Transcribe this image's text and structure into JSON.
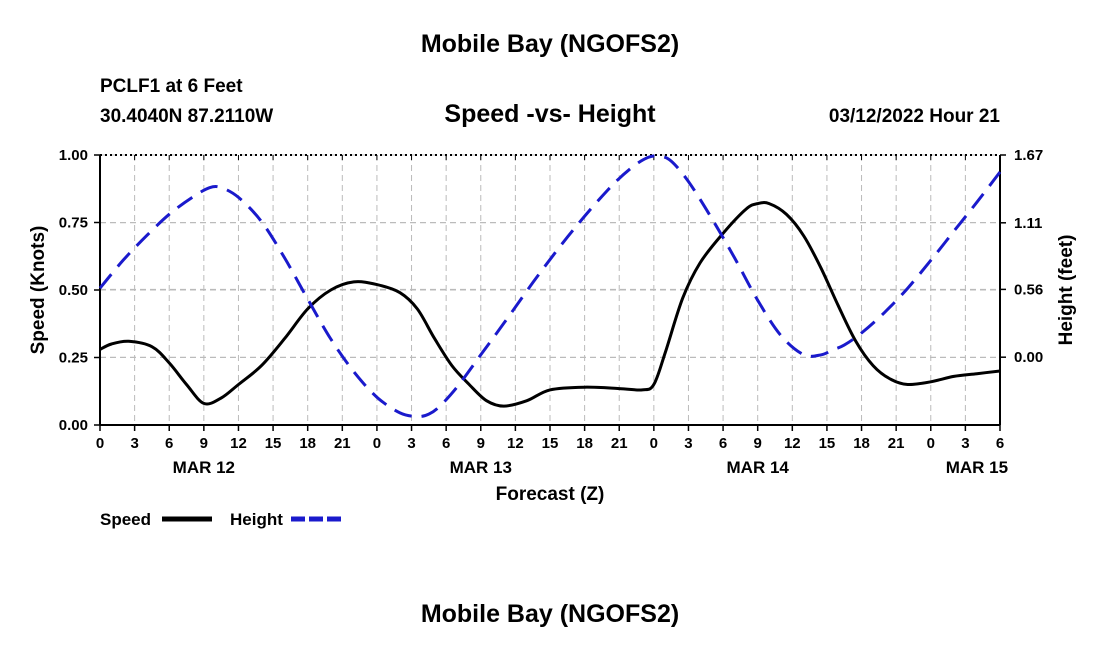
{
  "page": {
    "title_top": "Mobile Bay (NGOFS2)",
    "station_line1": "PCLF1 at 6 Feet",
    "station_line2": "30.4040N  87.2110W",
    "chart_title": "Speed -vs- Height",
    "timestamp": "03/12/2022 Hour 21",
    "title_bottom": "Mobile Bay (NGOFS2)"
  },
  "chart_data": {
    "type": "line",
    "title": "Speed -vs- Height",
    "xlabel": "Forecast (Z)",
    "ylabel": "Speed (Knots)",
    "y2label": "Height (feet)",
    "ylim": [
      0,
      1.0
    ],
    "y2lim": [
      -0.56,
      1.67
    ],
    "grid": true,
    "xlim_hours": [
      0,
      78
    ],
    "x_ticks": [
      {
        "hour": 0,
        "label": "0"
      },
      {
        "hour": 3,
        "label": "3"
      },
      {
        "hour": 6,
        "label": "6"
      },
      {
        "hour": 9,
        "label": "9"
      },
      {
        "hour": 12,
        "label": "12"
      },
      {
        "hour": 15,
        "label": "15"
      },
      {
        "hour": 18,
        "label": "18"
      },
      {
        "hour": 21,
        "label": "21"
      },
      {
        "hour": 24,
        "label": "0"
      },
      {
        "hour": 27,
        "label": "3"
      },
      {
        "hour": 30,
        "label": "6"
      },
      {
        "hour": 33,
        "label": "9"
      },
      {
        "hour": 36,
        "label": "12"
      },
      {
        "hour": 39,
        "label": "15"
      },
      {
        "hour": 42,
        "label": "18"
      },
      {
        "hour": 45,
        "label": "21"
      },
      {
        "hour": 48,
        "label": "0"
      },
      {
        "hour": 51,
        "label": "3"
      },
      {
        "hour": 54,
        "label": "6"
      },
      {
        "hour": 57,
        "label": "9"
      },
      {
        "hour": 60,
        "label": "12"
      },
      {
        "hour": 63,
        "label": "15"
      },
      {
        "hour": 66,
        "label": "18"
      },
      {
        "hour": 69,
        "label": "21"
      },
      {
        "hour": 72,
        "label": "0"
      },
      {
        "hour": 75,
        "label": "3"
      },
      {
        "hour": 78,
        "label": "6"
      }
    ],
    "date_labels": [
      {
        "hour": 9,
        "label": "MAR 12"
      },
      {
        "hour": 33,
        "label": "MAR 13"
      },
      {
        "hour": 57,
        "label": "MAR 14"
      },
      {
        "hour": 76,
        "label": "MAR 15"
      }
    ],
    "y_ticks": [
      {
        "value": 0.0,
        "label": "0.00"
      },
      {
        "value": 0.25,
        "label": "0.25"
      },
      {
        "value": 0.5,
        "label": "0.50"
      },
      {
        "value": 0.75,
        "label": "0.75"
      },
      {
        "value": 1.0,
        "label": "1.00"
      }
    ],
    "y2_ticks": [
      {
        "value": 0.0,
        "label": "0.00"
      },
      {
        "value": 0.56,
        "label": "0.56"
      },
      {
        "value": 1.11,
        "label": "1.11"
      },
      {
        "value": 1.67,
        "label": "1.67"
      }
    ],
    "series": [
      {
        "name": "Speed",
        "axis": "left",
        "color": "#000000",
        "dash": "solid",
        "x": [
          0,
          1,
          2.5,
          4.5,
          6,
          7.5,
          9,
          10.5,
          12,
          14,
          16,
          18,
          20,
          22,
          24,
          26,
          27.5,
          29,
          30.5,
          32,
          33.5,
          35,
          37,
          39,
          42,
          45,
          47,
          48,
          49,
          50.5,
          52,
          54,
          56,
          57,
          58,
          59.5,
          61,
          62.5,
          64,
          65.5,
          67,
          68.5,
          70,
          72,
          74,
          76,
          78
        ],
        "y": [
          0.28,
          0.3,
          0.31,
          0.29,
          0.23,
          0.15,
          0.08,
          0.1,
          0.15,
          0.22,
          0.32,
          0.43,
          0.5,
          0.53,
          0.52,
          0.49,
          0.43,
          0.32,
          0.22,
          0.15,
          0.09,
          0.07,
          0.09,
          0.13,
          0.14,
          0.135,
          0.13,
          0.15,
          0.27,
          0.47,
          0.6,
          0.71,
          0.8,
          0.82,
          0.82,
          0.78,
          0.7,
          0.58,
          0.44,
          0.31,
          0.22,
          0.17,
          0.15,
          0.16,
          0.18,
          0.19,
          0.2
        ]
      },
      {
        "name": "Height",
        "axis": "right",
        "color": "#1a1acc",
        "dash": "dashed",
        "x": [
          0,
          2,
          4,
          6,
          8,
          9.5,
          10.5,
          12,
          14,
          16,
          18,
          20,
          22,
          24,
          26,
          27.5,
          28.5,
          29.5,
          31,
          33,
          35,
          38,
          41,
          44,
          46,
          47.5,
          48.5,
          49.5,
          51,
          53,
          55,
          57,
          59,
          61,
          62.5,
          63.5,
          64.5,
          66,
          68,
          70,
          72,
          74,
          76,
          78
        ],
        "y": [
          0.57,
          0.8,
          1.0,
          1.18,
          1.32,
          1.4,
          1.4,
          1.32,
          1.12,
          0.82,
          0.48,
          0.15,
          -0.12,
          -0.33,
          -0.46,
          -0.49,
          -0.47,
          -0.4,
          -0.24,
          0.02,
          0.28,
          0.68,
          1.05,
          1.38,
          1.56,
          1.65,
          1.66,
          1.62,
          1.45,
          1.15,
          0.82,
          0.47,
          0.18,
          0.02,
          0.02,
          0.06,
          0.1,
          0.2,
          0.37,
          0.57,
          0.8,
          1.04,
          1.28,
          1.53
        ]
      }
    ],
    "legend": [
      {
        "label": "Speed",
        "color": "#000000",
        "dash": "solid"
      },
      {
        "label": "Height",
        "color": "#1a1acc",
        "dash": "dashed"
      }
    ]
  }
}
